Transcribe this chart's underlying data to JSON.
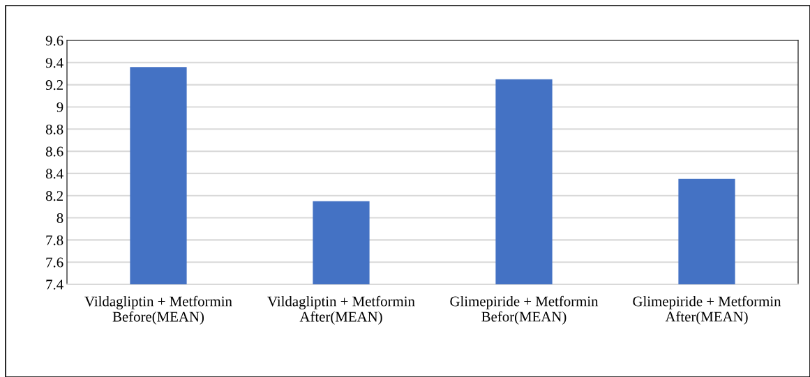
{
  "chart_data": {
    "type": "bar",
    "categories": [
      "Vildagliptin + Metformin\nBefore(MEAN)",
      "Vildagliptin + Metformin\nAfter(MEAN)",
      "Glimepiride + Metformin\nBefor(MEAN)",
      "Glimepiride + Metformin\nAfter(MEAN)"
    ],
    "values": [
      9.36,
      8.15,
      9.25,
      8.35
    ],
    "color": "#4472c4",
    "ylim": [
      7.4,
      9.6
    ],
    "yticks": [
      7.4,
      7.6,
      7.8,
      8,
      8.2,
      8.4,
      8.6,
      8.8,
      9,
      9.2,
      9.4,
      9.6
    ],
    "grid": "y",
    "legend": false
  }
}
